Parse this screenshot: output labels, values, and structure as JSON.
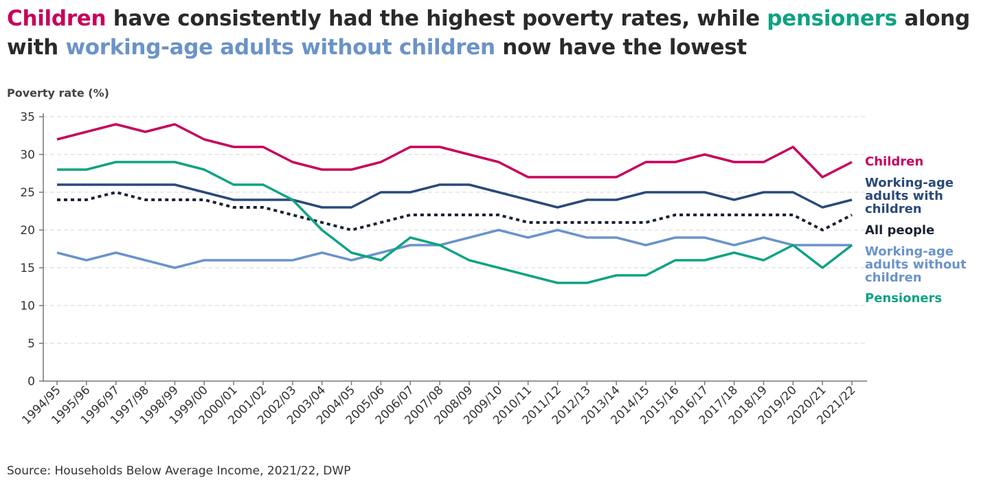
{
  "title": {
    "p1": "Children",
    "p2": " have consistently had the highest poverty rates, while ",
    "p3": "pensioners",
    "p4": " along",
    "p5": "with ",
    "p6": "working-age adults without children",
    "p7": " now have the lowest"
  },
  "source": "Source: Households Below Average Income, 2021/22, DWP",
  "chart_data": {
    "type": "line",
    "ylabel": "Poverty rate (%)",
    "xlabel": "",
    "ylim": [
      0,
      35
    ],
    "yticks": [
      "0",
      "5",
      "10",
      "15",
      "20",
      "25",
      "30",
      "35"
    ],
    "grid": true,
    "legend_placement": "right (direct labels)",
    "categories": [
      "1994/95",
      "1995/96",
      "1996/97",
      "1997/98",
      "1998/99",
      "1999/00",
      "2000/01",
      "2001/02",
      "2002/03",
      "2003/04",
      "2004/05",
      "2005/06",
      "2006/07",
      "2007/08",
      "2008/09",
      "2009/10",
      "2010/11",
      "2011/12",
      "2012/13",
      "2013/14",
      "2014/15",
      "2015/16",
      "2016/17",
      "2017/18",
      "2018/19",
      "2019/20",
      "2020/21",
      "2021/22"
    ],
    "series": [
      {
        "name": "Children",
        "color": "#c8005a",
        "dashed": false,
        "values": [
          32,
          33,
          34,
          33,
          34,
          32,
          31,
          31,
          29,
          28,
          28,
          29,
          31,
          31,
          30,
          29,
          27,
          27,
          27,
          27,
          29,
          29,
          30,
          29,
          29,
          31,
          27,
          29
        ]
      },
      {
        "name": "Working-age adults with children",
        "color": "#2a4a7a",
        "dashed": false,
        "values": [
          26,
          26,
          26,
          26,
          26,
          25,
          24,
          24,
          24,
          23,
          23,
          25,
          25,
          26,
          26,
          25,
          24,
          23,
          24,
          24,
          25,
          25,
          25,
          24,
          25,
          25,
          23,
          24
        ]
      },
      {
        "name": "All people",
        "color": "#1a2233",
        "dashed": true,
        "values": [
          24,
          24,
          25,
          24,
          24,
          24,
          23,
          23,
          22,
          21,
          20,
          21,
          22,
          22,
          22,
          22,
          21,
          21,
          21,
          21,
          21,
          22,
          22,
          22,
          22,
          22,
          20,
          22
        ]
      },
      {
        "name": "Working-age adults without children",
        "color": "#6b93c9",
        "dashed": false,
        "values": [
          17,
          16,
          17,
          16,
          15,
          16,
          16,
          16,
          16,
          17,
          16,
          17,
          18,
          18,
          19,
          20,
          19,
          20,
          19,
          19,
          18,
          19,
          19,
          18,
          19,
          18,
          18,
          18
        ]
      },
      {
        "name": "Pensioners",
        "color": "#0ea383",
        "dashed": false,
        "values": [
          28,
          28,
          29,
          29,
          29,
          28,
          26,
          26,
          24,
          20,
          17,
          16,
          19,
          18,
          16,
          15,
          14,
          13,
          13,
          14,
          14,
          16,
          16,
          17,
          16,
          18,
          15,
          18
        ]
      }
    ],
    "labels": {
      "children": [
        "Children"
      ],
      "with_children": [
        "Working-age",
        "adults with",
        "children"
      ],
      "all": [
        "All people"
      ],
      "without_children": [
        "Working-age",
        "adults without",
        "children"
      ],
      "pensioners": [
        "Pensioners"
      ]
    }
  }
}
